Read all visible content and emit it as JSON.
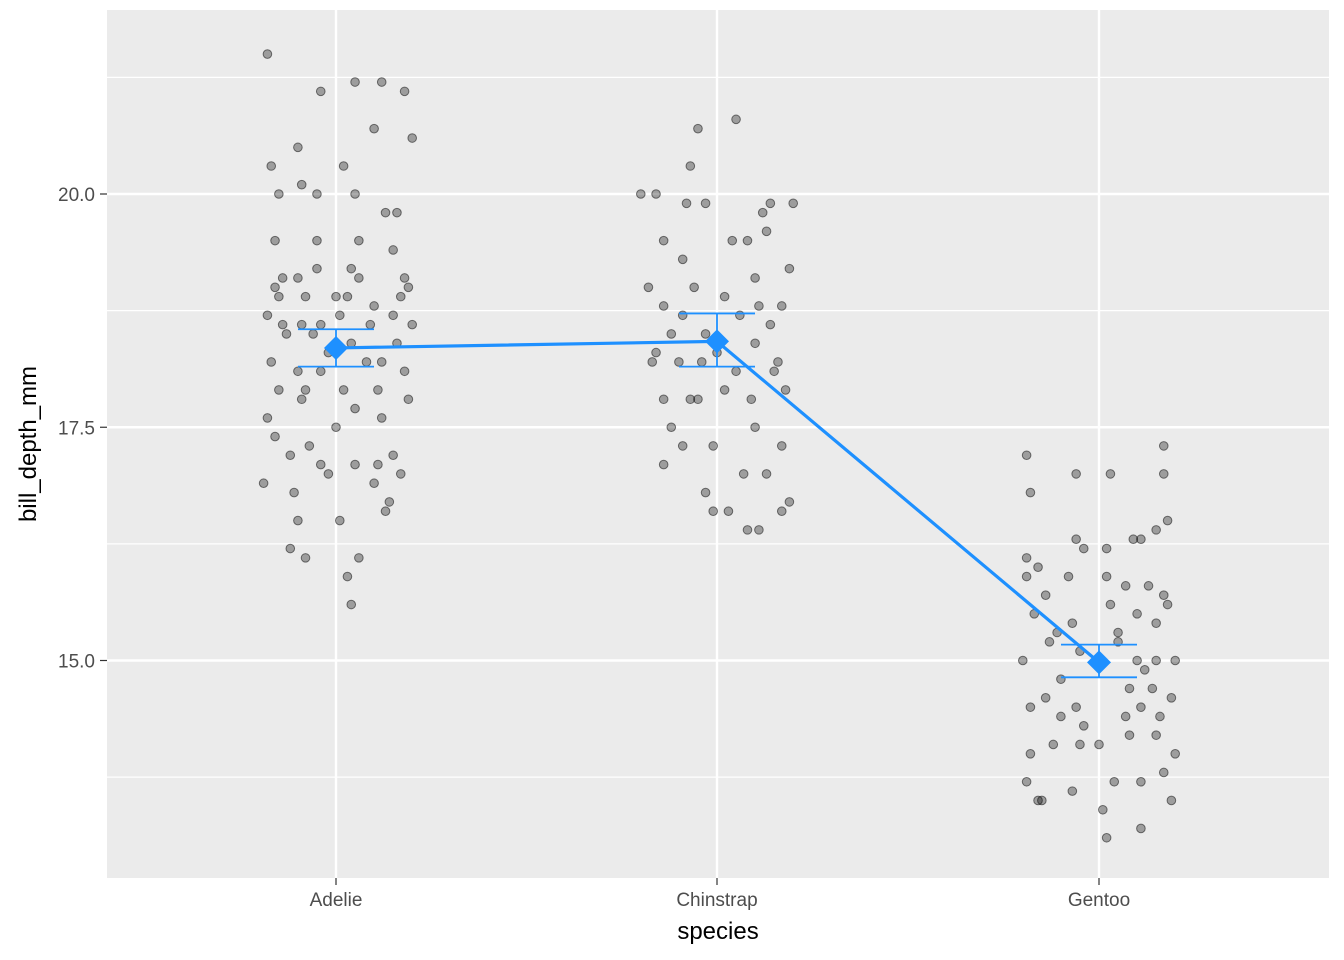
{
  "chart_data": {
    "type": "scatter",
    "title": "",
    "xlabel": "species",
    "ylabel": "bill_depth_mm",
    "categories": [
      "Adelie",
      "Chinstrap",
      "Gentoo"
    ],
    "ylim": [
      12.9,
      21.8
    ],
    "y_ticks": [
      15.0,
      17.5,
      20.0
    ],
    "y_tick_labels": [
      "15.0",
      "17.5",
      "20.0"
    ],
    "y_minor_ticks": [
      13.75,
      16.25,
      18.75,
      21.25
    ],
    "grid": true,
    "legend": "none",
    "colors": {
      "panel": "#ebebeb",
      "grid": "#ffffff",
      "points": "#000000",
      "summary": "#1e90ff"
    },
    "points": {
      "Adelie": [
        [
          -0.18,
          21.5
        ],
        [
          0.05,
          21.2
        ],
        [
          -0.04,
          21.1
        ],
        [
          0.12,
          21.2
        ],
        [
          0.18,
          21.1
        ],
        [
          0.1,
          20.7
        ],
        [
          0.2,
          20.6
        ],
        [
          -0.1,
          20.5
        ],
        [
          -0.17,
          20.3
        ],
        [
          0.02,
          20.3
        ],
        [
          -0.15,
          20.0
        ],
        [
          -0.05,
          20.0
        ],
        [
          -0.09,
          20.1
        ],
        [
          0.05,
          20.0
        ],
        [
          -0.16,
          19.5
        ],
        [
          0.06,
          19.5
        ],
        [
          -0.05,
          19.5
        ],
        [
          0.13,
          19.8
        ],
        [
          0.16,
          19.8
        ],
        [
          0.15,
          19.4
        ],
        [
          -0.05,
          19.2
        ],
        [
          0.04,
          19.2
        ],
        [
          -0.1,
          19.1
        ],
        [
          0.06,
          19.1
        ],
        [
          -0.16,
          19.0
        ],
        [
          -0.14,
          19.1
        ],
        [
          0.18,
          19.1
        ],
        [
          0.19,
          19.0
        ],
        [
          -0.15,
          18.9
        ],
        [
          -0.08,
          18.9
        ],
        [
          0.0,
          18.9
        ],
        [
          0.03,
          18.9
        ],
        [
          0.1,
          18.8
        ],
        [
          0.17,
          18.9
        ],
        [
          -0.18,
          18.7
        ],
        [
          -0.14,
          18.6
        ],
        [
          -0.09,
          18.6
        ],
        [
          -0.04,
          18.6
        ],
        [
          0.01,
          18.7
        ],
        [
          0.09,
          18.6
        ],
        [
          0.15,
          18.7
        ],
        [
          0.2,
          18.6
        ],
        [
          -0.13,
          18.5
        ],
        [
          -0.06,
          18.5
        ],
        [
          0.04,
          18.4
        ],
        [
          -0.02,
          18.3
        ],
        [
          0.12,
          18.2
        ],
        [
          0.16,
          18.4
        ],
        [
          -0.17,
          18.2
        ],
        [
          -0.1,
          18.1
        ],
        [
          -0.04,
          18.1
        ],
        [
          0.08,
          18.2
        ],
        [
          0.18,
          18.1
        ],
        [
          -0.15,
          17.9
        ],
        [
          -0.08,
          17.9
        ],
        [
          0.02,
          17.9
        ],
        [
          0.11,
          17.9
        ],
        [
          -0.18,
          17.6
        ],
        [
          -0.09,
          17.8
        ],
        [
          0.05,
          17.7
        ],
        [
          0.12,
          17.6
        ],
        [
          0.19,
          17.8
        ],
        [
          -0.16,
          17.4
        ],
        [
          -0.07,
          17.3
        ],
        [
          0.0,
          17.5
        ],
        [
          0.15,
          17.2
        ],
        [
          -0.12,
          17.2
        ],
        [
          -0.04,
          17.1
        ],
        [
          0.05,
          17.1
        ],
        [
          0.11,
          17.1
        ],
        [
          0.17,
          17.0
        ],
        [
          -0.19,
          16.9
        ],
        [
          -0.11,
          16.8
        ],
        [
          -0.02,
          17.0
        ],
        [
          0.1,
          16.9
        ],
        [
          0.14,
          16.7
        ],
        [
          -0.1,
          16.5
        ],
        [
          0.01,
          16.5
        ],
        [
          0.13,
          16.6
        ],
        [
          -0.12,
          16.2
        ],
        [
          -0.08,
          16.1
        ],
        [
          0.06,
          16.1
        ],
        [
          0.03,
          15.9
        ],
        [
          0.04,
          15.6
        ]
      ],
      "Chinstrap": [
        [
          0.05,
          20.8
        ],
        [
          -0.05,
          20.7
        ],
        [
          -0.07,
          20.3
        ],
        [
          -0.2,
          20.0
        ],
        [
          -0.16,
          20.0
        ],
        [
          -0.03,
          19.9
        ],
        [
          -0.08,
          19.9
        ],
        [
          0.14,
          19.9
        ],
        [
          0.2,
          19.9
        ],
        [
          0.12,
          19.8
        ],
        [
          -0.14,
          19.5
        ],
        [
          0.04,
          19.5
        ],
        [
          0.08,
          19.5
        ],
        [
          0.13,
          19.6
        ],
        [
          -0.09,
          19.3
        ],
        [
          0.19,
          19.2
        ],
        [
          0.1,
          19.1
        ],
        [
          -0.18,
          19.0
        ],
        [
          -0.06,
          19.0
        ],
        [
          0.02,
          18.9
        ],
        [
          0.17,
          18.8
        ],
        [
          -0.14,
          18.8
        ],
        [
          -0.09,
          18.7
        ],
        [
          0.06,
          18.7
        ],
        [
          0.14,
          18.6
        ],
        [
          -0.12,
          18.5
        ],
        [
          -0.03,
          18.5
        ],
        [
          0.1,
          18.4
        ],
        [
          -0.16,
          18.3
        ],
        [
          0.0,
          18.3
        ],
        [
          -0.17,
          18.2
        ],
        [
          -0.04,
          18.2
        ],
        [
          0.15,
          18.1
        ],
        [
          0.18,
          17.9
        ],
        [
          -0.14,
          17.8
        ],
        [
          -0.07,
          17.8
        ],
        [
          0.02,
          17.9
        ],
        [
          0.09,
          17.8
        ],
        [
          -0.12,
          17.5
        ],
        [
          0.1,
          17.5
        ],
        [
          -0.01,
          17.3
        ],
        [
          -0.09,
          17.3
        ],
        [
          0.17,
          17.3
        ],
        [
          0.07,
          17.0
        ],
        [
          0.13,
          17.0
        ],
        [
          -0.14,
          17.1
        ],
        [
          -0.03,
          16.8
        ],
        [
          -0.01,
          16.6
        ],
        [
          0.03,
          16.6
        ],
        [
          0.19,
          16.7
        ],
        [
          0.17,
          16.6
        ],
        [
          0.11,
          16.4
        ],
        [
          0.08,
          16.4
        ],
        [
          -0.05,
          17.8
        ],
        [
          0.05,
          18.1
        ],
        [
          -0.1,
          18.2
        ],
        [
          0.11,
          18.8
        ],
        [
          0.16,
          18.2
        ]
      ],
      "Gentoo": [
        [
          -0.19,
          17.2
        ],
        [
          -0.06,
          17.0
        ],
        [
          0.03,
          17.0
        ],
        [
          0.17,
          17.3
        ],
        [
          0.17,
          17.0
        ],
        [
          -0.18,
          16.8
        ],
        [
          -0.19,
          16.1
        ],
        [
          -0.16,
          16.0
        ],
        [
          -0.06,
          16.3
        ],
        [
          -0.04,
          16.2
        ],
        [
          0.02,
          16.2
        ],
        [
          0.09,
          16.3
        ],
        [
          0.11,
          16.3
        ],
        [
          0.15,
          16.4
        ],
        [
          0.18,
          16.5
        ],
        [
          -0.19,
          15.9
        ],
        [
          -0.14,
          15.7
        ],
        [
          -0.08,
          15.9
        ],
        [
          0.02,
          15.9
        ],
        [
          0.07,
          15.8
        ],
        [
          0.13,
          15.8
        ],
        [
          0.17,
          15.7
        ],
        [
          -0.17,
          15.5
        ],
        [
          -0.07,
          15.4
        ],
        [
          0.03,
          15.6
        ],
        [
          0.1,
          15.5
        ],
        [
          0.15,
          15.4
        ],
        [
          0.18,
          15.6
        ],
        [
          -0.2,
          15.0
        ],
        [
          -0.13,
          15.2
        ],
        [
          -0.05,
          15.1
        ],
        [
          0.05,
          15.2
        ],
        [
          0.1,
          15.0
        ],
        [
          0.15,
          15.0
        ],
        [
          0.2,
          15.0
        ],
        [
          -0.18,
          14.5
        ],
        [
          -0.14,
          14.6
        ],
        [
          -0.1,
          14.4
        ],
        [
          -0.06,
          14.5
        ],
        [
          0.07,
          14.4
        ],
        [
          0.11,
          14.5
        ],
        [
          0.16,
          14.4
        ],
        [
          0.19,
          14.6
        ],
        [
          -0.18,
          14.0
        ],
        [
          -0.12,
          14.1
        ],
        [
          -0.05,
          14.1
        ],
        [
          0.0,
          14.1
        ],
        [
          0.08,
          14.2
        ],
        [
          0.15,
          14.2
        ],
        [
          0.2,
          14.0
        ],
        [
          -0.19,
          13.7
        ],
        [
          -0.15,
          13.5
        ],
        [
          -0.07,
          13.6
        ],
        [
          0.04,
          13.7
        ],
        [
          0.11,
          13.7
        ],
        [
          0.17,
          13.8
        ],
        [
          0.19,
          13.5
        ],
        [
          -0.16,
          13.5
        ],
        [
          0.01,
          13.4
        ],
        [
          0.11,
          13.2
        ],
        [
          0.02,
          13.1
        ],
        [
          -0.04,
          14.3
        ],
        [
          0.12,
          14.9
        ],
        [
          -0.1,
          14.8
        ],
        [
          0.08,
          14.7
        ],
        [
          0.14,
          14.7
        ],
        [
          -0.11,
          15.3
        ],
        [
          0.05,
          15.3
        ]
      ]
    },
    "series": [
      {
        "type": "mean_with_error",
        "categories": [
          "Adelie",
          "Chinstrap",
          "Gentoo"
        ],
        "values": [
          18.35,
          18.42,
          14.98
        ],
        "lower": [
          18.15,
          18.15,
          14.82
        ],
        "upper": [
          18.55,
          18.72,
          15.17
        ]
      }
    ]
  }
}
